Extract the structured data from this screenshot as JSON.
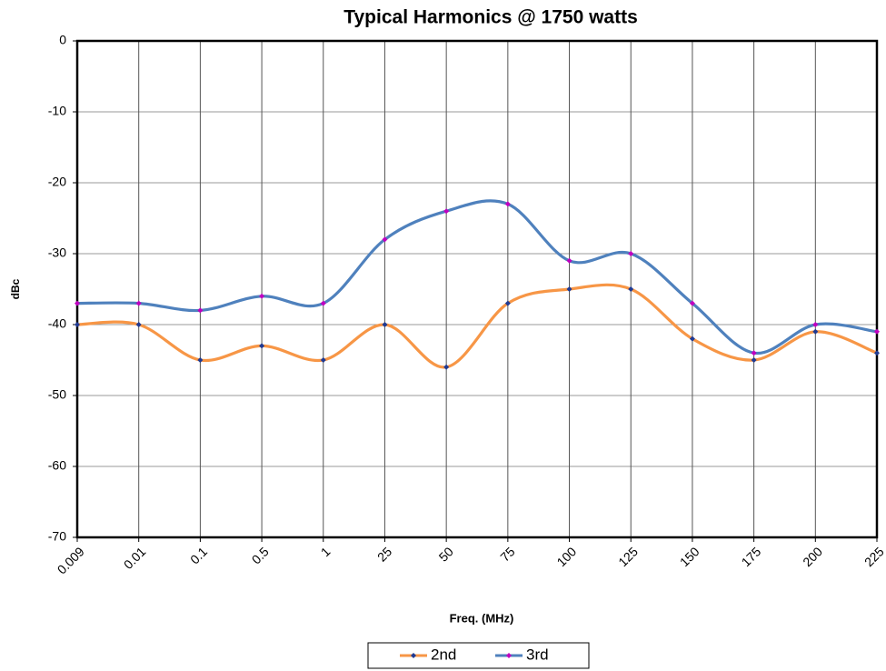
{
  "chart_data": {
    "type": "line",
    "title": "Typical Harmonics @ 1750 watts",
    "x_label": "Freq. (MHz)",
    "y_label": "dBc",
    "categories": [
      "0.009",
      "0.01",
      "0.1",
      "0.5",
      "1",
      "25",
      "50",
      "75",
      "100",
      "125",
      "150",
      "175",
      "200",
      "225"
    ],
    "series": [
      {
        "name": "2nd",
        "color": "#F79646",
        "marker_color": "#1F3A93",
        "values": [
          -40,
          -40,
          -45,
          -43,
          -45,
          -40,
          -46,
          -37,
          -35,
          -35,
          -42,
          -45,
          -41,
          -44
        ]
      },
      {
        "name": "3rd",
        "color": "#4F81BD",
        "marker_color": "#C000C0",
        "values": [
          -37,
          -37,
          -38,
          -36,
          -37,
          -28,
          -24,
          -23,
          -31,
          -30,
          -37,
          -44,
          -40,
          -41
        ]
      }
    ],
    "ylim": [
      -70,
      0
    ],
    "yticks": [
      0,
      -10,
      -20,
      -30,
      -40,
      -50,
      -60,
      -70
    ],
    "grid": true,
    "legend": "bottom"
  }
}
